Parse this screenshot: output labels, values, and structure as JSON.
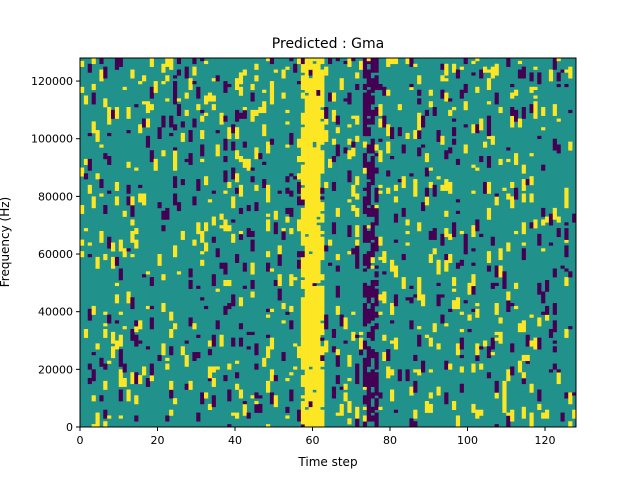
{
  "chart_data": {
    "type": "heatmap",
    "title": "Predicted : Gma",
    "xlabel": "Time step",
    "ylabel": "Frequency (Hz)",
    "xlim": [
      0,
      128
    ],
    "ylim": [
      0,
      128000
    ],
    "x_ticks": [
      0,
      20,
      40,
      60,
      80,
      100,
      120
    ],
    "y_ticks": [
      0,
      20000,
      40000,
      60000,
      80000,
      100000,
      120000
    ],
    "grid": false,
    "colormap": "viridis",
    "levels": {
      "low": -1,
      "mid": 0,
      "high": 1
    },
    "colors": {
      "low": "#440154",
      "mid": "#21918c",
      "high": "#fde725"
    },
    "columns": {
      "count": 128,
      "rows_per_column": 128
    },
    "structure": {
      "dominant_band_x": [
        57,
        62
      ],
      "dominant_band_value": 1,
      "secondary_band_x": [
        73,
        76
      ],
      "secondary_band_value": -1,
      "background_value": 0
    }
  }
}
